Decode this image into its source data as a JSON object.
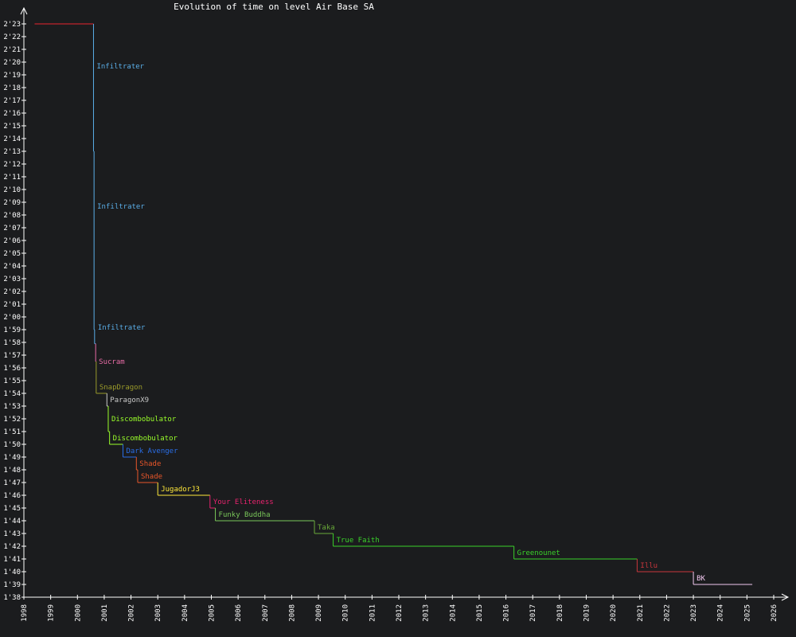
{
  "chart_data": {
    "type": "line",
    "title": "Evolution of time on level Air Base SA",
    "xlabel": "",
    "ylabel": "",
    "x_ticks": [
      "1998",
      "1999",
      "2000",
      "2001",
      "2002",
      "2003",
      "2004",
      "2005",
      "2006",
      "2007",
      "2008",
      "2009",
      "2010",
      "2011",
      "2012",
      "2013",
      "2014",
      "2015",
      "2016",
      "2017",
      "2018",
      "2019",
      "2020",
      "2021",
      "2022",
      "2023",
      "2024",
      "2025",
      "2026"
    ],
    "y_ticks": [
      "1'38",
      "1'39",
      "1'40",
      "1'41",
      "1'42",
      "1'43",
      "1'44",
      "1'45",
      "1'46",
      "1'47",
      "1'48",
      "1'49",
      "1'50",
      "1'51",
      "1'52",
      "1'53",
      "1'54",
      "1'55",
      "1'56",
      "1'57",
      "1'58",
      "1'59",
      "2'00",
      "2'01",
      "2'02",
      "2'03",
      "2'04",
      "2'05",
      "2'06",
      "2'07",
      "2'08",
      "2'09",
      "2'10",
      "2'11",
      "2'12",
      "2'13",
      "2'14",
      "2'15",
      "2'16",
      "2'17",
      "2'18",
      "2'19",
      "2'20",
      "2'21",
      "2'22",
      "2'23"
    ],
    "xlim": [
      1998,
      2026
    ],
    "ylim_seconds": [
      98,
      143
    ],
    "grid": false,
    "records": [
      {
        "name": "",
        "x": 1998.4,
        "y": 143,
        "color": "#e8232d"
      },
      {
        "name": "Infiltrater",
        "x": 2000.6,
        "y": 133,
        "color": "#5aaee8"
      },
      {
        "name": "Infiltrater",
        "x": 2000.62,
        "y": 119,
        "color": "#5aaee8"
      },
      {
        "name": "Infiltrater",
        "x": 2000.64,
        "y": 117.9,
        "color": "#5aaee8"
      },
      {
        "name": "Sucram",
        "x": 2000.68,
        "y": 116.5,
        "color": "#e86ca6"
      },
      {
        "name": "SnapDragon",
        "x": 2000.7,
        "y": 114,
        "color": "#9a9a2a"
      },
      {
        "name": "ParagonX9",
        "x": 2001.1,
        "y": 113,
        "color": "#c8c8c8"
      },
      {
        "name": "Discombobulator",
        "x": 2001.15,
        "y": 111,
        "color": "#9aff2a"
      },
      {
        "name": "Discombobulator",
        "x": 2001.2,
        "y": 110,
        "color": "#9aff2a"
      },
      {
        "name": "Dark Avenger",
        "x": 2001.7,
        "y": 109,
        "color": "#2a6ee8"
      },
      {
        "name": "Shade",
        "x": 2002.2,
        "y": 108,
        "color": "#e8562a"
      },
      {
        "name": "Shade",
        "x": 2002.25,
        "y": 107,
        "color": "#e8562a"
      },
      {
        "name": "JugadorJ3",
        "x": 2003.0,
        "y": 106,
        "color": "#ffe83a"
      },
      {
        "name": "Your Eliteness",
        "x": 2004.95,
        "y": 105,
        "color": "#e8236e"
      },
      {
        "name": "Funky Buddha",
        "x": 2005.15,
        "y": 104,
        "color": "#7ac85a"
      },
      {
        "name": "Taka",
        "x": 2008.85,
        "y": 103,
        "color": "#6aaa3a"
      },
      {
        "name": "True Faith",
        "x": 2009.55,
        "y": 102,
        "color": "#3ad22a"
      },
      {
        "name": "Greenounet",
        "x": 2016.3,
        "y": 101,
        "color": "#3ad22a"
      },
      {
        "name": "Illu",
        "x": 2020.9,
        "y": 100,
        "color": "#c8363c"
      },
      {
        "name": "BK",
        "x": 2023.0,
        "y": 99,
        "color": "#f2c8f0"
      }
    ],
    "end_x": 2025.2,
    "label_y": {
      "Infiltrater#1": 139.7,
      "Infiltrater#2": 128.7,
      "Infiltrater#3": 119.2
    }
  }
}
